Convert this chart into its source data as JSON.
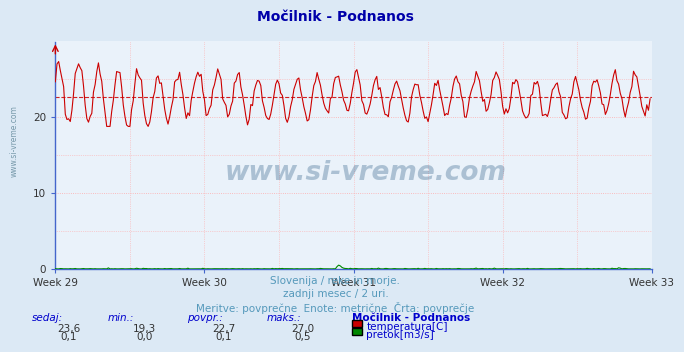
{
  "title": "Močilnik - Podnanos",
  "title_color": "#0000aa",
  "title_fontsize": 10,
  "bg_color": "#dce9f5",
  "plot_bg_color": "#eaf2fa",
  "grid_color_h": "#ffaaaa",
  "grid_color_v": "#ffaaaa",
  "axis_color": "#4466cc",
  "xlim": [
    0,
    360
  ],
  "ylim": [
    0,
    30
  ],
  "yticks": [
    0,
    10,
    20
  ],
  "xtick_labels": [
    "Week 29",
    "Week 30",
    "Week 31",
    "Week 32",
    "Week 33"
  ],
  "xtick_positions": [
    0,
    90,
    180,
    270,
    360
  ],
  "temp_color": "#cc0000",
  "flow_color": "#008800",
  "avg_line_color": "#cc0000",
  "avg_value": 22.7,
  "temp_min": 19.3,
  "temp_max": 27.0,
  "temp_avg": 22.7,
  "temp_now": 23.6,
  "flow_min": 0.0,
  "flow_max": 0.5,
  "flow_avg": 0.1,
  "flow_now": 0.1,
  "subtitle1": "Slovenija / reke in morje.",
  "subtitle2": "zadnji mesec / 2 uri.",
  "subtitle3": "Meritve: povprečne  Enote: metrične  Črta: povprečje",
  "subtitle_color": "#5599bb",
  "label_color": "#0000cc",
  "watermark": "www.si-vreme.com",
  "watermark_color": "#1a4f7a",
  "n_points": 360
}
